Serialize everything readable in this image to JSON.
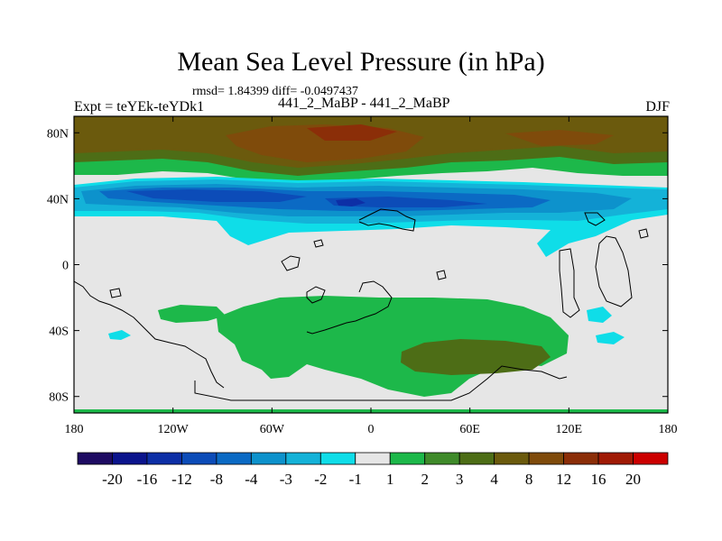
{
  "title": "Mean Sea Level Pressure (in hPa)",
  "stats": "rmsd= 1.84399 diff= -0.0497437",
  "experiment": "Expt = teYEk-teYDk1",
  "runs": "441_2_MaBP - 441_2_MaBP",
  "season": "DJF",
  "map": {
    "lon_range": [
      -180,
      180
    ],
    "lat_range": [
      -90,
      90
    ],
    "x_ticks": [
      {
        "value": -180,
        "label": "180"
      },
      {
        "value": -120,
        "label": "120W"
      },
      {
        "value": -60,
        "label": "60W"
      },
      {
        "value": 0,
        "label": "0"
      },
      {
        "value": 60,
        "label": "60E"
      },
      {
        "value": 120,
        "label": "120E"
      },
      {
        "value": 180,
        "label": "180"
      }
    ],
    "y_ticks": [
      {
        "value": 80,
        "label": "80N"
      },
      {
        "value": 40,
        "label": "40N"
      },
      {
        "value": 0,
        "label": "0"
      },
      {
        "value": -40,
        "label": "40S"
      },
      {
        "value": -80,
        "label": "80S"
      }
    ],
    "background_color": "#e6e6e6",
    "coastline_color": "#000000"
  },
  "colorbar": {
    "colors": [
      "#1e0b62",
      "#0b148c",
      "#0d2fa6",
      "#0c4cb8",
      "#0b6ac4",
      "#0d92cc",
      "#14b2d8",
      "#0fdde8",
      "#e6e6e6",
      "#1db84a",
      "#3f8a2a",
      "#4d6d16",
      "#6b5a0d",
      "#7f4b0b",
      "#8b2e08",
      "#a01a05",
      "#cc0000"
    ],
    "labels": [
      "-20",
      "-16",
      "-12",
      "-8",
      "-4",
      "-3",
      "-2",
      "-1",
      "1",
      "2",
      "3",
      "4",
      "8",
      "12",
      "16",
      "20"
    ]
  }
}
